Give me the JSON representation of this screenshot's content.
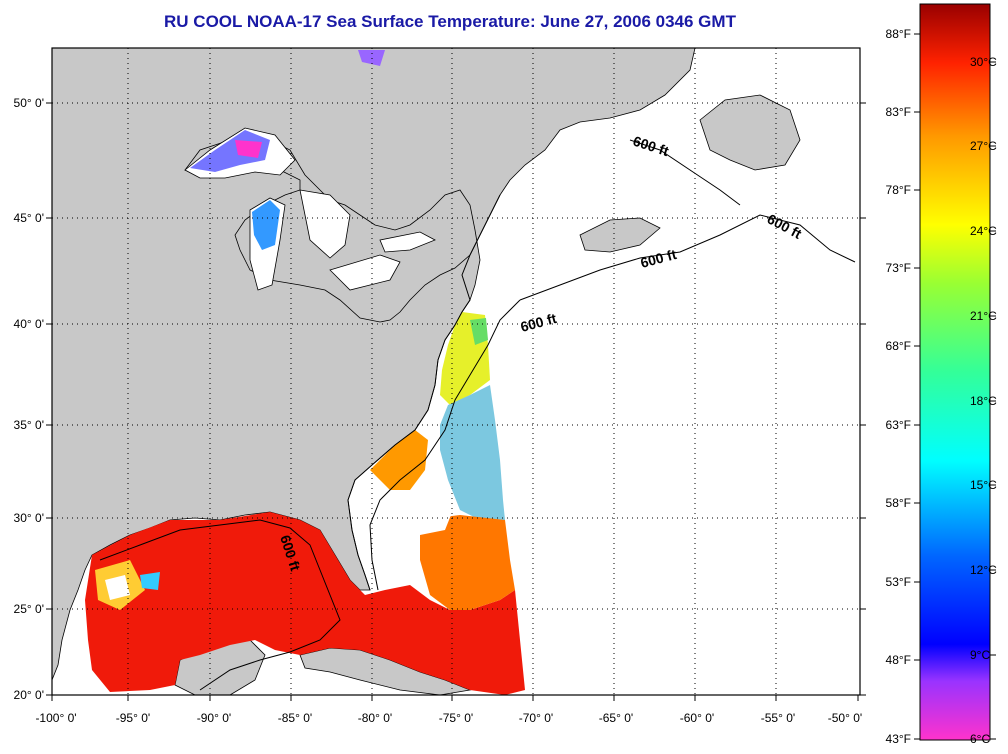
{
  "title": "RU COOL  NOAA-17  Sea Surface Temperature:  June 27, 2006 0346 GMT",
  "map": {
    "lat_ticks": [
      "50° 0'",
      "45° 0'",
      "40° 0'",
      "35° 0'",
      "30° 0'",
      "25° 0'",
      "20° 0'"
    ],
    "lon_ticks": [
      "-100° 0'",
      "-95° 0'",
      "-90° 0'",
      "-85° 0'",
      "-80° 0'",
      "-75° 0'",
      "-70° 0'",
      "-65° 0'",
      "-60° 0'",
      "-55° 0'",
      "-50° 0'"
    ],
    "contour_labels": [
      "600 ft",
      "600 ft",
      "600 ft",
      "600 ft",
      "600 ft"
    ],
    "land_color": "#c8c8c8",
    "nodata_color": "#ffffff"
  },
  "colorbar": {
    "fahrenheit": [
      "88°F",
      "83°F",
      "78°F",
      "73°F",
      "68°F",
      "63°F",
      "58°F",
      "53°F",
      "48°F",
      "43°F"
    ],
    "celsius": [
      "30°C",
      "27°C",
      "24°C",
      "21°C",
      "18°C",
      "15°C",
      "12°C",
      "9°C",
      "6°C"
    ]
  }
}
